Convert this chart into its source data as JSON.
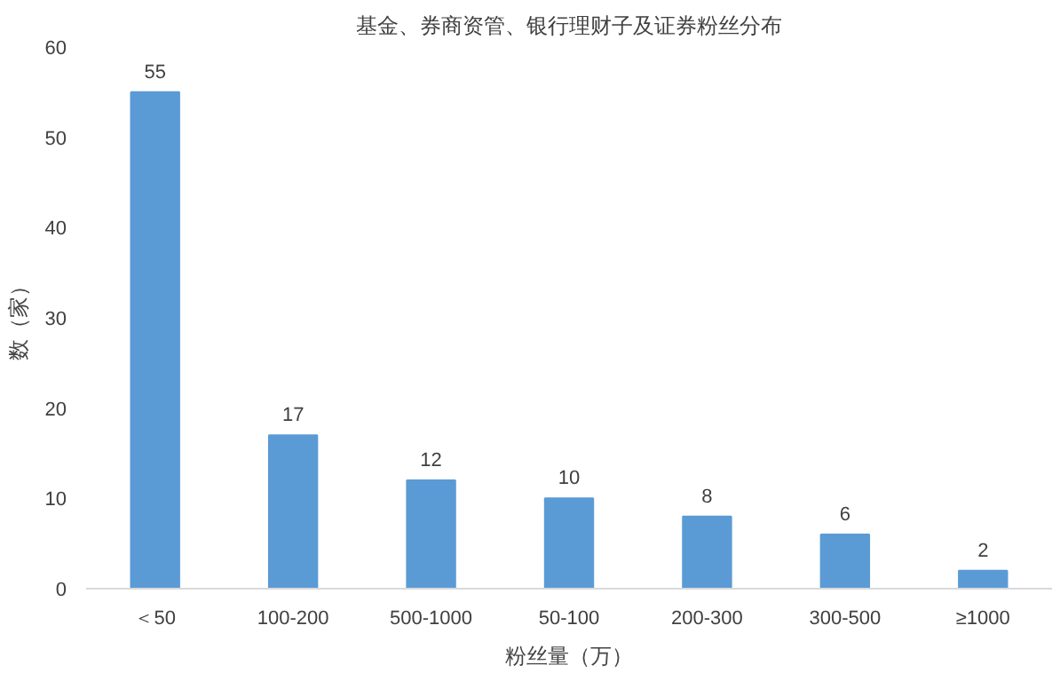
{
  "chart_data": {
    "type": "bar",
    "title": "基金、券商资管、银行理财子及证券粉丝分布",
    "xlabel": "粉丝量（万）",
    "ylabel": "数（家）",
    "categories": [
      "＜50",
      "100-200",
      "500-1000",
      "50-100",
      "200-300",
      "300-500",
      "≥1000"
    ],
    "values": [
      55,
      17,
      12,
      10,
      8,
      6,
      2
    ],
    "color": "#5b9bd5",
    "ylim": [
      0,
      60
    ],
    "yticks": [
      0,
      10,
      20,
      30,
      40,
      50,
      60
    ],
    "grid": false,
    "data_labels": true
  }
}
